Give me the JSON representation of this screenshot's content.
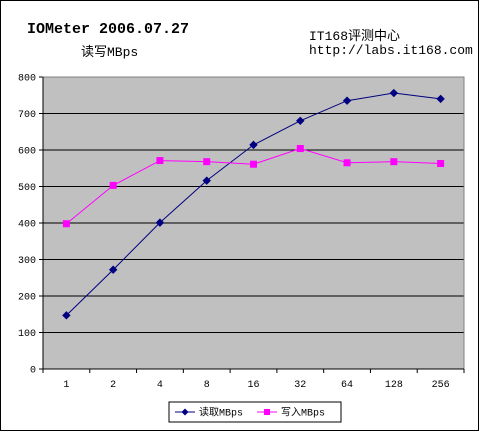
{
  "header": {
    "title": "IOMeter 2006.07.27",
    "subtitle": "读写MBps",
    "org": "IT168评测中心",
    "url": "http://labs.it168.com"
  },
  "chart_data": {
    "type": "line",
    "categories": [
      "1",
      "2",
      "4",
      "8",
      "16",
      "32",
      "64",
      "128",
      "256"
    ],
    "ylim": [
      0,
      800
    ],
    "yticks": [
      0,
      100,
      200,
      300,
      400,
      500,
      600,
      700,
      800
    ],
    "grid": true,
    "legend_position": "bottom",
    "series": [
      {
        "name": "读取MBps",
        "color": "#000080",
        "marker": "diamond",
        "values": [
          147,
          272,
          401,
          516,
          614,
          680,
          735,
          756,
          740
        ]
      },
      {
        "name": "写入MBps",
        "color": "#ff00ff",
        "marker": "square",
        "values": [
          398,
          503,
          571,
          568,
          561,
          604,
          565,
          568,
          563
        ]
      }
    ]
  },
  "colors": {
    "plot_bg": "#c0c0c0",
    "grid": "#000000"
  }
}
